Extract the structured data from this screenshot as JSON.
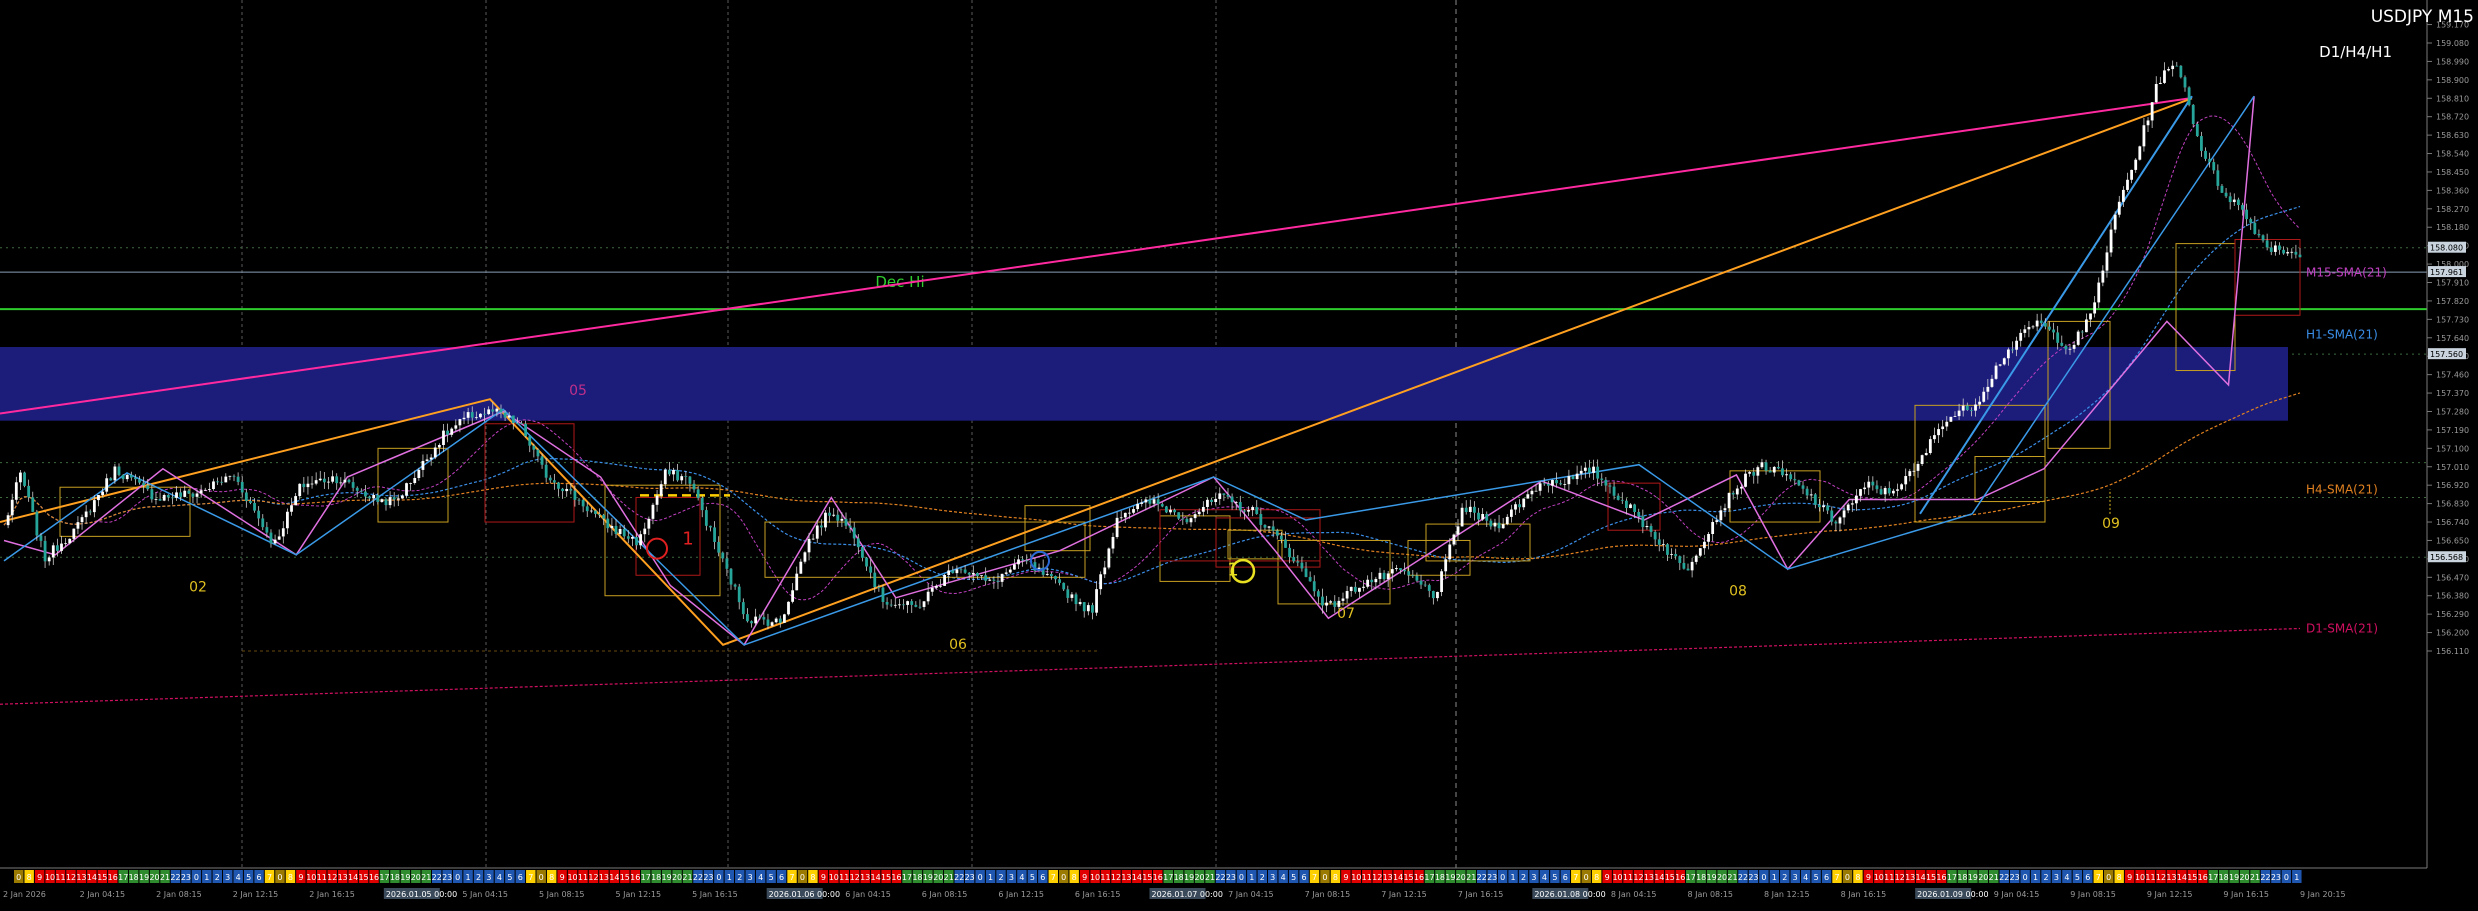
{
  "header": {
    "symbol_timeframe": "USDJPY M15",
    "timeframes": "D1/H4/H1"
  },
  "chart_data": {
    "type": "candlestick",
    "symbol": "USDJPY",
    "timeframe": "M15",
    "ylim": [
      155.05,
      159.3
    ],
    "grid": true,
    "price_ticks": [
      "159.260",
      "159.170",
      "159.080",
      "158.990",
      "158.900",
      "158.810",
      "158.720",
      "158.630",
      "158.540",
      "158.450",
      "158.360",
      "158.270",
      "158.180",
      "158.090",
      "158.000",
      "157.910",
      "157.820",
      "157.730",
      "157.640",
      "157.550",
      "157.460",
      "157.370",
      "157.280",
      "157.190",
      "157.100",
      "157.010",
      "156.920",
      "156.830",
      "156.740",
      "156.650",
      "156.560",
      "156.470",
      "156.380",
      "156.290",
      "156.200",
      "156.110"
    ],
    "price_tags": [
      {
        "label": "158.080",
        "price": 158.08,
        "color": "#c9d4de"
      },
      {
        "label": "157.961",
        "price": 157.961,
        "color": "#c9d4de"
      },
      {
        "label": "157.560",
        "price": 157.56,
        "color": "#c9d4de"
      },
      {
        "label": "156.568",
        "price": 156.568,
        "color": "#c9d4de"
      }
    ],
    "time_labels": [
      "2 Jan 2026",
      "2 Jan 04:15",
      "2 Jan 08:15",
      "2 Jan 12:15",
      "2 Jan 16:15",
      "2026.01.05 00:00",
      "5 Jan 04:15",
      "5 Jan 08:15",
      "5 Jan 12:15",
      "5 Jan 16:15",
      "2026.01.06 00:00",
      "6 Jan 04:15",
      "6 Jan 08:15",
      "6 Jan 12:15",
      "6 Jan 16:15",
      "2026.01.07 00:00",
      "7 Jan 04:15",
      "7 Jan 08:15",
      "7 Jan 12:15",
      "7 Jan 16:15",
      "2026.01.08 00:00",
      "8 Jan 04:15",
      "8 Jan 08:15",
      "8 Jan 12:15",
      "8 Jan 16:15",
      "2026.01.09 00:00",
      "9 Jan 04:15",
      "9 Jan 08:15",
      "9 Jan 12:15",
      "9 Jan 16:15",
      "9 Jan 20:15"
    ],
    "hour_strip": [
      {
        "label": "0",
        "color": "#9a7a00"
      },
      {
        "label": "8",
        "color": "#ffd000"
      },
      {
        "label": "9",
        "color": "#e00000"
      },
      {
        "label": "10",
        "color": "#e00000"
      },
      {
        "label": "11",
        "color": "#e00000"
      },
      {
        "label": "12",
        "color": "#e00000"
      },
      {
        "label": "13",
        "color": "#e00000"
      },
      {
        "label": "14",
        "color": "#e00000"
      },
      {
        "label": "15",
        "color": "#e00000"
      },
      {
        "label": "16",
        "color": "#e00000"
      },
      {
        "label": "17",
        "color": "#2e8b2e"
      },
      {
        "label": "18",
        "color": "#2e8b2e"
      },
      {
        "label": "19",
        "color": "#2e8b2e"
      },
      {
        "label": "20",
        "color": "#2e8b2e"
      },
      {
        "label": "21",
        "color": "#2e8b2e"
      },
      {
        "label": "22",
        "color": "#1e56b0"
      },
      {
        "label": "23",
        "color": "#1e56b0"
      },
      {
        "label": "0",
        "color": "#1e56b0"
      },
      {
        "label": "1",
        "color": "#1e56b0"
      },
      {
        "label": "2",
        "color": "#1e56b0"
      },
      {
        "label": "3",
        "color": "#1e56b0"
      },
      {
        "label": "4",
        "color": "#1e56b0"
      },
      {
        "label": "5",
        "color": "#1e56b0"
      },
      {
        "label": "6",
        "color": "#1e56b0"
      },
      {
        "label": "7",
        "color": "#ffd000"
      }
    ],
    "zone": {
      "top": 157.595,
      "bottom": 157.235,
      "color": "#1c1c7a"
    },
    "horizontal_lines": [
      {
        "name": "dec-hi",
        "price": 157.78,
        "color": "#2ecc2e",
        "label": "Dec Hi"
      }
    ],
    "indicator_labels": [
      {
        "text": "M15-SMA(21)",
        "price": 157.96,
        "color": "#c040c0"
      },
      {
        "text": "H1-SMA(21)",
        "price": 157.655,
        "color": "#3a8ee8"
      },
      {
        "text": "H4-SMA(21)",
        "price": 156.9,
        "color": "#e08020"
      },
      {
        "text": "D1-SMA(21)",
        "price": 156.22,
        "color": "#d01060"
      }
    ],
    "day_labels": [
      {
        "text": "02",
        "price": 156.4
      },
      {
        "text": "06",
        "price": 156.12
      },
      {
        "text": "07",
        "price": 156.27
      },
      {
        "text": "08",
        "price": 156.38
      },
      {
        "text": "09",
        "price": 156.71
      }
    ],
    "annotations": [
      {
        "text": "05",
        "price": 157.36,
        "color": "#c0308a"
      },
      {
        "text": "1",
        "price": 156.63,
        "color": "#e02020"
      },
      {
        "text": "1",
        "price": 156.48,
        "color": "#e8e020"
      }
    ]
  }
}
